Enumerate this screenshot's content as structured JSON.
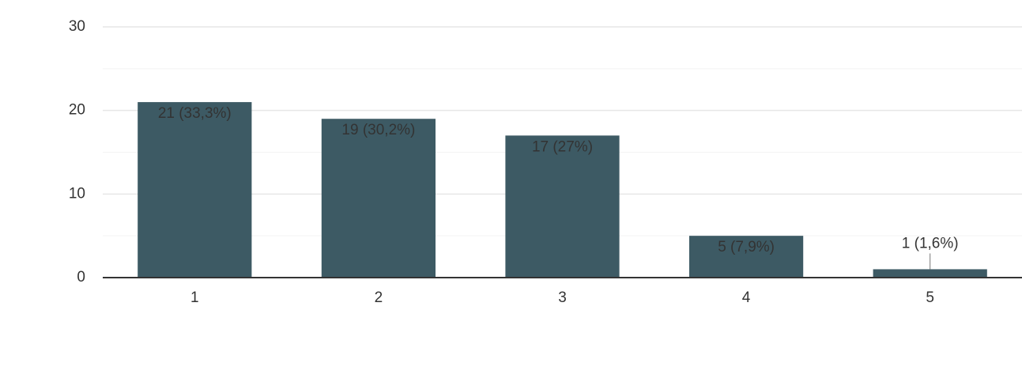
{
  "chart_data": {
    "type": "bar",
    "categories": [
      "1",
      "2",
      "3",
      "4",
      "5"
    ],
    "values": [
      21,
      19,
      17,
      5,
      1
    ],
    "value_labels": [
      "21 (33,3%)",
      "19 (30,2%)",
      "17 (27%)",
      "5 (7,9%)",
      "1 (1,6%)"
    ],
    "color": "#3d5a64",
    "ylim": [
      0,
      30
    ],
    "yticks": [
      0,
      10,
      20,
      30
    ],
    "minor_yticks": [
      5,
      15,
      25
    ],
    "grid": true
  }
}
